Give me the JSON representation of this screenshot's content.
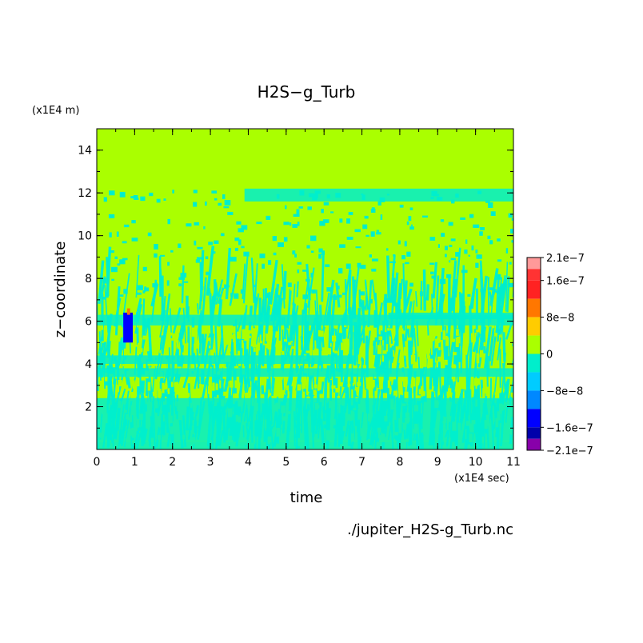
{
  "chart_data": {
    "type": "heatmap",
    "title": "H2S−g_Turb",
    "xlabel": "time",
    "ylabel": "z−coordinate",
    "x_unit": "(x1E4 sec)",
    "y_unit": "(x1E4 m)",
    "source_file": "./jupiter_H2S-g_Turb.nc",
    "xlim": [
      0,
      11
    ],
    "ylim": [
      0,
      15
    ],
    "x_ticks": [
      "0",
      "1",
      "2",
      "3",
      "4",
      "5",
      "6",
      "7",
      "8",
      "9",
      "10",
      "11"
    ],
    "y_ticks": [
      "2",
      "4",
      "6",
      "8",
      "10",
      "12",
      "14"
    ],
    "y_tick_values": [
      2,
      4,
      6,
      8,
      10,
      12,
      14
    ],
    "x_tick_values": [
      0,
      1,
      2,
      3,
      4,
      5,
      6,
      7,
      8,
      9,
      10,
      11
    ],
    "colorbar": {
      "min": -2.1e-07,
      "max": 2.1e-07,
      "labels": [
        "2.1e−7",
        "1.6e−7",
        "8e−8",
        "0",
        "−8e−8",
        "−1.6e−7",
        "−2.1e−7"
      ],
      "label_values": [
        2.1e-07,
        1.6e-07,
        8e-08,
        0,
        -8e-08,
        -1.6e-07,
        -2.1e-07
      ],
      "bands": [
        {
          "from": 1.85e-07,
          "to": 2.1e-07,
          "color": "#ff9999"
        },
        {
          "from": 1.6e-07,
          "to": 1.85e-07,
          "color": "#ff3333"
        },
        {
          "from": 1.2e-07,
          "to": 1.6e-07,
          "color": "#ff2222"
        },
        {
          "from": 8e-08,
          "to": 1.2e-07,
          "color": "#ff7700"
        },
        {
          "from": 4e-08,
          "to": 8e-08,
          "color": "#ffcc00"
        },
        {
          "from": 0,
          "to": 4e-08,
          "color": "#aaff00"
        },
        {
          "from": -4e-08,
          "to": 0,
          "color": "#00eecc"
        },
        {
          "from": -8e-08,
          "to": -4e-08,
          "color": "#00ccff"
        },
        {
          "from": -1.2e-07,
          "to": -8e-08,
          "color": "#0088ff"
        },
        {
          "from": -1.6e-07,
          "to": -1.2e-07,
          "color": "#0000ff"
        },
        {
          "from": -1.85e-07,
          "to": -1.6e-07,
          "color": "#0000aa"
        },
        {
          "from": -2.1e-07,
          "to": -1.85e-07,
          "color": "#8800aa"
        }
      ]
    },
    "background_value_color": "#aaff00",
    "regions": [
      {
        "x": [
          0,
          11
        ],
        "y": [
          0,
          0.4
        ],
        "value": -2e-08
      },
      {
        "x": [
          0,
          11
        ],
        "y": [
          0.4,
          2.4
        ],
        "value": -1e-08
      },
      {
        "x": [
          0,
          11
        ],
        "y": [
          3.4,
          3.8
        ],
        "value": -2e-08
      },
      {
        "x": [
          0,
          6.8
        ],
        "y": [
          4.0,
          4.4
        ],
        "value": -2e-08
      },
      {
        "x": [
          0,
          11
        ],
        "y": [
          5.8,
          6.3
        ],
        "value": -2e-08
      },
      {
        "x": [
          7.7,
          11
        ],
        "y": [
          6.1,
          6.4
        ],
        "value": -2e-08
      },
      {
        "x": [
          3.9,
          11
        ],
        "y": [
          11.6,
          12.2
        ],
        "value": -2e-08
      },
      {
        "x": [
          0.7,
          0.95
        ],
        "y": [
          5.0,
          6.4
        ],
        "value": -1.3e-07
      },
      {
        "x": [
          0.8,
          0.88
        ],
        "y": [
          6.3,
          6.6
        ],
        "value": 1e-07
      }
    ]
  }
}
